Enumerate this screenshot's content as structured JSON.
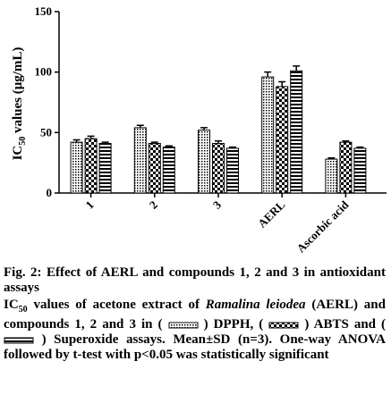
{
  "chart_data": {
    "type": "bar",
    "ylabel": {
      "main": "IC",
      "sub": "50",
      "rest": " values (μg/mL)"
    },
    "categories": [
      "1",
      "2",
      "3",
      "AERL",
      "Ascorbic acid"
    ],
    "series": [
      {
        "name": "DPPH",
        "color": "#000000",
        "values": [
          42,
          54,
          52,
          96,
          28
        ],
        "errors": [
          2,
          2,
          2,
          4,
          1
        ]
      },
      {
        "name": "ABTS",
        "color": "#000000",
        "values": [
          45,
          41,
          41,
          88,
          42
        ],
        "errors": [
          2,
          1,
          2,
          4,
          1
        ]
      },
      {
        "name": "Superoxide",
        "color": "#000000",
        "values": [
          41,
          38,
          37,
          101,
          37
        ],
        "errors": [
          1,
          1,
          1,
          4,
          1
        ]
      }
    ],
    "ylim": [
      0,
      150
    ],
    "yticks": [
      0,
      50,
      100,
      150
    ]
  },
  "caption": {
    "title": "Fig. 2: Effect of AERL and compounds 1, 2 and 3 in antioxidant assays",
    "ic": "IC",
    "ic_sub": "50",
    "text1": " values of acetone extract of ",
    "species": "Ramalina leiodea",
    "text2": " (AERL) and compounds 1, 2 and 3 in (",
    "close": ")",
    "sep1": ", (",
    "sep2": " and (",
    "text3": " assays. Mean±SD (n=3). One-way ANOVA followed by t-test with p<0.05 was statistically significant"
  }
}
